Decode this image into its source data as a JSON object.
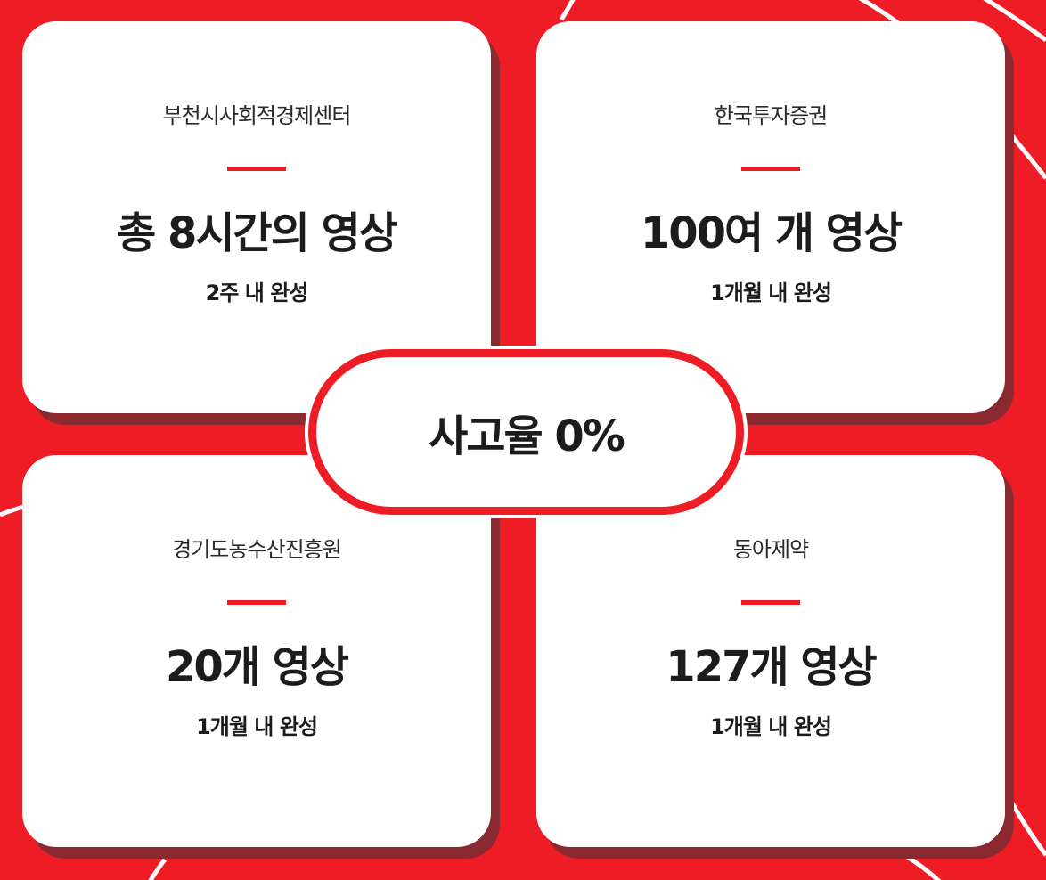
{
  "cards": [
    {
      "org": "부천시사회적경제센터",
      "headline": "총 8시간의 영상",
      "sub": "2주 내 완성"
    },
    {
      "org": "한국투자증권",
      "headline": "100여 개 영상",
      "sub": "1개월 내 완성"
    },
    {
      "org": "경기도농수산진흥원",
      "headline": "20개 영상",
      "sub": "1개월 내 완성"
    },
    {
      "org": "동아제약",
      "headline": "127개 영상",
      "sub": "1개월 내 완성"
    }
  ],
  "center": {
    "label": "사고율 0%"
  },
  "colors": {
    "accent": "#ee1c25",
    "card": "#ffffff",
    "shadow": "#8a2a30",
    "text": "#1c1c1c"
  }
}
